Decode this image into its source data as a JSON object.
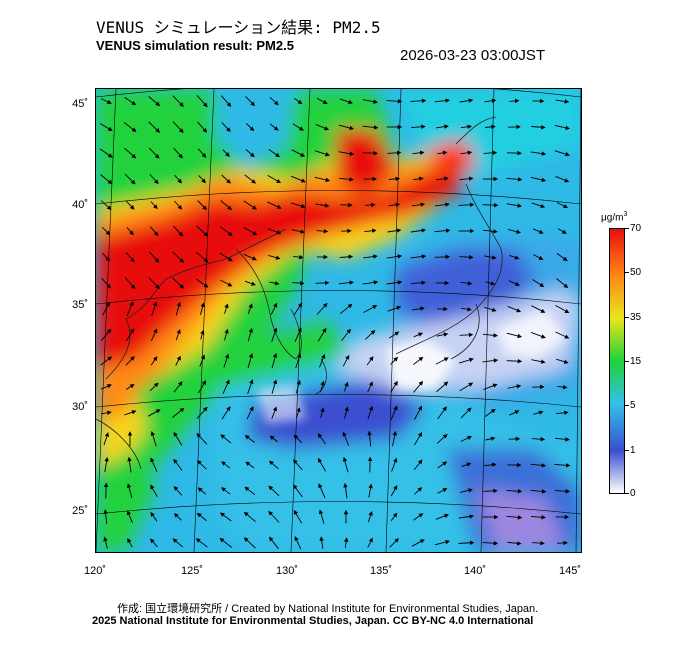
{
  "header": {
    "title_jp": "VENUS シミュレーション結果: PM2.5",
    "title_en": "VENUS simulation result: PM2.5",
    "timestamp": "2026-03-23 03:00JST"
  },
  "axes": {
    "lat_labels": [
      "45˚",
      "40˚",
      "35˚",
      "30˚",
      "25˚"
    ],
    "lon_labels": [
      "120˚",
      "125˚",
      "130˚",
      "135˚",
      "140˚",
      "145˚"
    ]
  },
  "colorbar": {
    "unit": "μg/m",
    "unit_sup": "3",
    "ticks": [
      "70",
      "50",
      "35",
      "15",
      "5",
      "1",
      "0"
    ],
    "colors": [
      "#ffffff",
      "#3a4fd0",
      "#35c0e8",
      "#1fd23a",
      "#e7e61c",
      "#ff8a16",
      "#e80f0f"
    ]
  },
  "footer": {
    "credit_jp": "作成: 国立環境研究所 / Created by National Institute for Environmental Studies, Japan.",
    "copyright": "2025 National Institute for Environmental Studies, Japan. CC BY-NC 4.0 International"
  }
}
